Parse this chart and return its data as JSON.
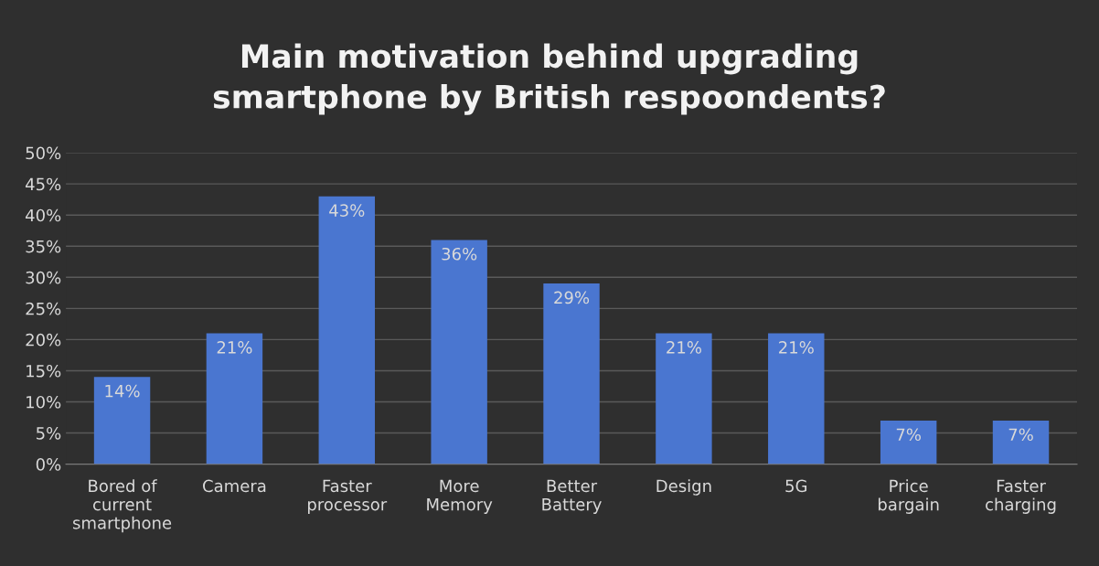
{
  "chart_data": {
    "type": "bar",
    "title": "Main motivation behind upgrading\nsmartphone by British respoondents?",
    "categories": [
      "Bored of\ncurrent\nsmartphone",
      "Camera",
      "Faster\nprocessor",
      "More\nMemory",
      "Better\nBattery",
      "Design",
      "5G",
      "Price\nbargain",
      "Faster\ncharging"
    ],
    "values": [
      14,
      21,
      43,
      36,
      29,
      21,
      21,
      7,
      7
    ],
    "value_labels": [
      "14%",
      "21%",
      "43%",
      "36%",
      "29%",
      "21%",
      "21%",
      "7%",
      "7%"
    ],
    "color": "#4a76d0",
    "ylim": [
      0,
      50
    ],
    "yticks": [
      {
        "value": 0,
        "label": "0%"
      },
      {
        "value": 5,
        "label": "5%"
      },
      {
        "value": 10,
        "label": "10%"
      },
      {
        "value": 15,
        "label": "15%"
      },
      {
        "value": 20,
        "label": "20%"
      },
      {
        "value": 25,
        "label": "25%"
      },
      {
        "value": 30,
        "label": "30%"
      },
      {
        "value": 35,
        "label": "35%"
      },
      {
        "value": 40,
        "label": "40%"
      },
      {
        "value": 45,
        "label": "45%"
      },
      {
        "value": 50,
        "label": "50%"
      }
    ],
    "grid": "y"
  }
}
